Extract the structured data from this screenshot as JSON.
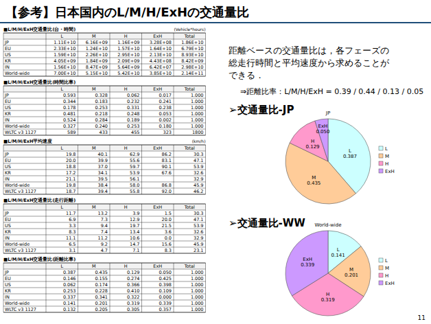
{
  "header": {
    "title": "【参考】日本国内のL/M/H/ExHの交通量比",
    "page": "11"
  },
  "tables": [
    {
      "title": "■L/M/H/ExH交通量比(台・時間)",
      "unit": "(Vehicle*hours)",
      "columns": [
        "L",
        "M",
        "H",
        "ExH",
        "Total"
      ],
      "rows": [
        {
          "label": "JP",
          "cells": [
            "1.11E+10",
            "6.16E+09",
            "1.16E+09",
            "3.28E+08",
            "1.86E+10"
          ]
        },
        {
          "label": "EU",
          "cells": [
            "2.33E+10",
            "1.24E+10",
            "1.57E+10",
            "1.64E+10",
            "6.79E+10"
          ]
        },
        {
          "label": "US",
          "cells": [
            "1.59E+10",
            "2.26E+10",
            "2.95E+10",
            "2.13E+10",
            "8.93E+10"
          ]
        },
        {
          "label": "KR",
          "cells": [
            "4.05E+09",
            "1.84E+09",
            "2.09E+09",
            "4.43E+08",
            "8.42E+09"
          ]
        },
        {
          "label": "IN",
          "cells": [
            "1.56E+10",
            "8.47E+09",
            "5.64E+09",
            "6.42E+07",
            "2.98E+10"
          ]
        },
        {
          "label": "World-wide",
          "cells": [
            "7.00E+10",
            "5.15E+10",
            "5.42E+10",
            "3.85E+10",
            "2.14E+11"
          ]
        }
      ]
    },
    {
      "title": "■L/M/H/ExH交通量比(時間比率)",
      "columns": [
        "L",
        "M",
        "H",
        "ExH",
        "Total"
      ],
      "rows": [
        {
          "label": "JP",
          "cells": [
            "0.593",
            "0.328",
            "0.062",
            "0.017",
            "1.000"
          ]
        },
        {
          "label": "EU",
          "cells": [
            "0.344",
            "0.183",
            "0.232",
            "0.241",
            "1.000"
          ]
        },
        {
          "label": "US",
          "cells": [
            "0.178",
            "0.253",
            "0.331",
            "0.238",
            "1.000"
          ]
        },
        {
          "label": "KR",
          "cells": [
            "0.481",
            "0.218",
            "0.248",
            "0.053",
            "1.000"
          ]
        },
        {
          "label": "IN",
          "cells": [
            "0.524",
            "0.284",
            "0.189",
            "0.002",
            "1.000"
          ]
        },
        {
          "label": "World-wide",
          "cells": [
            "0.327",
            "0.240",
            "0.253",
            "0.180",
            "1.000"
          ]
        },
        {
          "label": "WLTC v3 1127",
          "cells": [
            "589",
            "433",
            "455",
            "323",
            "1800"
          ]
        }
      ]
    },
    {
      "title": "■L/M/H/ExH平均速度",
      "unit": "(km/h)",
      "columns": [
        "L",
        "M",
        "H",
        "ExH",
        "Total"
      ],
      "rows": [
        {
          "label": "JP",
          "cells": [
            "19.8",
            "40.1",
            "62.9",
            "86.2",
            "30.3"
          ]
        },
        {
          "label": "EU",
          "cells": [
            "20.0",
            "39.9",
            "55.6",
            "83.1",
            "47.1"
          ]
        },
        {
          "label": "US",
          "cells": [
            "18.8",
            "37.0",
            "59.7",
            "90.1",
            "53.9"
          ]
        },
        {
          "label": "KR",
          "cells": [
            "17.2",
            "34.1",
            "53.9",
            "67.6",
            "32.6"
          ]
        },
        {
          "label": "IN",
          "cells": [
            "21.1",
            "39.5",
            "56.1",
            null,
            "32.9"
          ]
        },
        {
          "label": "World-wide",
          "cells": [
            "19.8",
            "38.4",
            "58.0",
            "86.8",
            "45.9"
          ]
        },
        {
          "label": "WLTC v3 1127",
          "cells": [
            "18.7",
            "39.4",
            "55.8",
            "92.0",
            "46.2"
          ]
        }
      ]
    },
    {
      "title": "■L/M/H/ExH交通量比(走行距離)",
      "columns": [
        "L",
        "M",
        "H",
        "ExH",
        "Total"
      ],
      "rows": [
        {
          "label": "JP",
          "cells": [
            "11.7",
            "13.2",
            "3.9",
            "1.5",
            "30.3"
          ]
        },
        {
          "label": "EU",
          "cells": [
            "6.9",
            "7.3",
            "12.9",
            "20.0",
            "47.1"
          ]
        },
        {
          "label": "US",
          "cells": [
            "3.3",
            "9.4",
            "19.7",
            "21.5",
            "53.9"
          ]
        },
        {
          "label": "KR",
          "cells": [
            "8.3",
            "7.4",
            "13.4",
            "3.6",
            "32.6"
          ]
        },
        {
          "label": "IN",
          "cells": [
            "11.1",
            "11.2",
            "10.6",
            "0.0",
            "32.9"
          ]
        },
        {
          "label": "World-wide",
          "cells": [
            "6.5",
            "9.2",
            "14.7",
            "15.6",
            "45.9"
          ]
        },
        {
          "label": "WLTC v3 1127",
          "cells": [
            "3.1",
            "4.7",
            "7.1",
            "8.3",
            "23.1"
          ]
        }
      ]
    },
    {
      "title": "■L/M/H/ExH交通量比(距離比率)",
      "columns": [
        "L",
        "M",
        "H",
        "ExH",
        "Total"
      ],
      "rows": [
        {
          "label": "JP",
          "cells": [
            "0.387",
            "0.435",
            "0.129",
            "0.050",
            "1.000"
          ]
        },
        {
          "label": "EU",
          "cells": [
            "0.146",
            "0.155",
            "0.274",
            "0.425",
            "1.000"
          ]
        },
        {
          "label": "US",
          "cells": [
            "0.062",
            "0.174",
            "0.366",
            "0.398",
            "1.000"
          ]
        },
        {
          "label": "KR",
          "cells": [
            "0.253",
            "0.228",
            "0.410",
            "0.109",
            "1.000"
          ]
        },
        {
          "label": "IN",
          "cells": [
            "0.337",
            "0.341",
            "0.322",
            "0.000",
            "1.000"
          ]
        },
        {
          "label": "World-wide",
          "cells": [
            "0.141",
            "0.201",
            "0.319",
            "0.339",
            "1.000"
          ]
        },
        {
          "label": "WLTC v3 1127",
          "cells": [
            "0.132",
            "0.205",
            "0.305",
            "0.357",
            "1.000"
          ]
        }
      ]
    }
  ],
  "text": {
    "lines": [
      "距離ベースの交通量比は，各フェーズの",
      "総走行時間と平均速度から求めることが",
      "できる．"
    ],
    "formula": "⇒距離比率：L/M/H/ExH = 0.39 / 0.44 / 0.13 / 0.05"
  },
  "sections": [
    "➢交通量比-JP",
    "➢交通量比-WW"
  ],
  "chart_data": [
    {
      "type": "pie",
      "title": "JP",
      "categories": [
        "L",
        "M",
        "H",
        "ExH"
      ],
      "values": [
        0.387,
        0.435,
        0.129,
        0.05
      ],
      "value_labels": [
        "0.387",
        "0.435",
        "0.129",
        "0.050"
      ],
      "colors": [
        "#ccffff",
        "#ffcc99",
        "#ff99cc",
        "#cc99ff"
      ],
      "data_labels": true,
      "legend": "right"
    },
    {
      "type": "pie",
      "title": "World-wide",
      "categories": [
        "L",
        "M",
        "H",
        "ExH"
      ],
      "values": [
        0.141,
        0.201,
        0.319,
        0.339
      ],
      "value_labels": [
        "0.141",
        "0.201",
        "0.319",
        "0.339"
      ],
      "colors": [
        "#ccffff",
        "#ffcc99",
        "#ff99cc",
        "#cc99ff"
      ],
      "data_labels": true,
      "legend": "right"
    }
  ]
}
